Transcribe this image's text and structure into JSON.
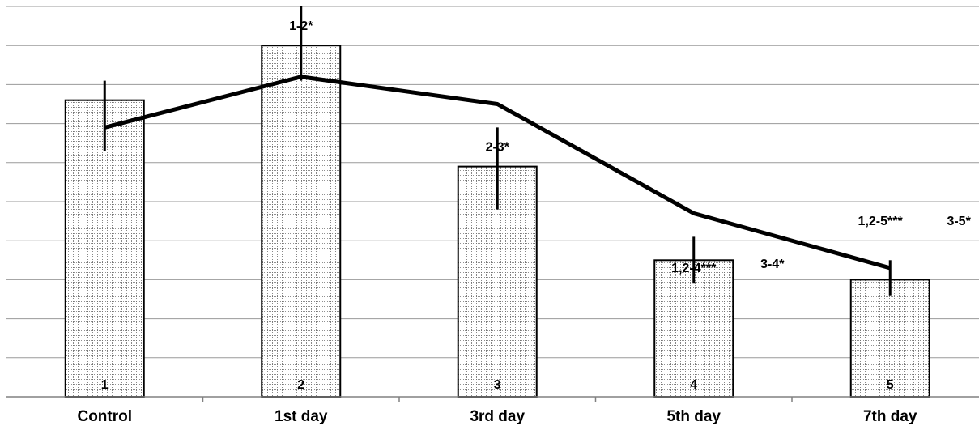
{
  "chart_data": {
    "type": "bar",
    "categories": [
      "Control",
      "1st day",
      "3rd day",
      "5th day",
      "7th day"
    ],
    "bar_numbers": [
      "1",
      "2",
      "3",
      "4",
      "5"
    ],
    "bar_values": [
      7.6,
      9.0,
      5.9,
      3.5,
      3.0
    ],
    "bar_errors": [
      [
        6.3,
        8.1
      ],
      [
        8.1,
        10.0
      ],
      [
        4.8,
        6.9
      ],
      [
        2.9,
        4.1
      ],
      [
        2.6,
        3.5
      ]
    ],
    "line_values": [
      6.9,
      8.2,
      7.5,
      4.7,
      3.3
    ],
    "annotations": [
      {
        "text": "1-2*",
        "x": 1,
        "y": 9.4
      },
      {
        "text": "2-3*",
        "x": 2,
        "y": 6.3
      },
      {
        "text": "1,2-4***",
        "x": 3,
        "y": 3.2
      },
      {
        "text": "3-4*",
        "x": 3.4,
        "y": 3.3
      },
      {
        "text": "1,2-5***",
        "x": 3.95,
        "y": 4.4
      },
      {
        "text": "3-5*",
        "x": 4.35,
        "y": 4.4
      }
    ],
    "ylim": [
      0,
      10
    ],
    "grid": true,
    "bar_fill": "dotted-grid-pattern",
    "line_color": "#000000"
  }
}
